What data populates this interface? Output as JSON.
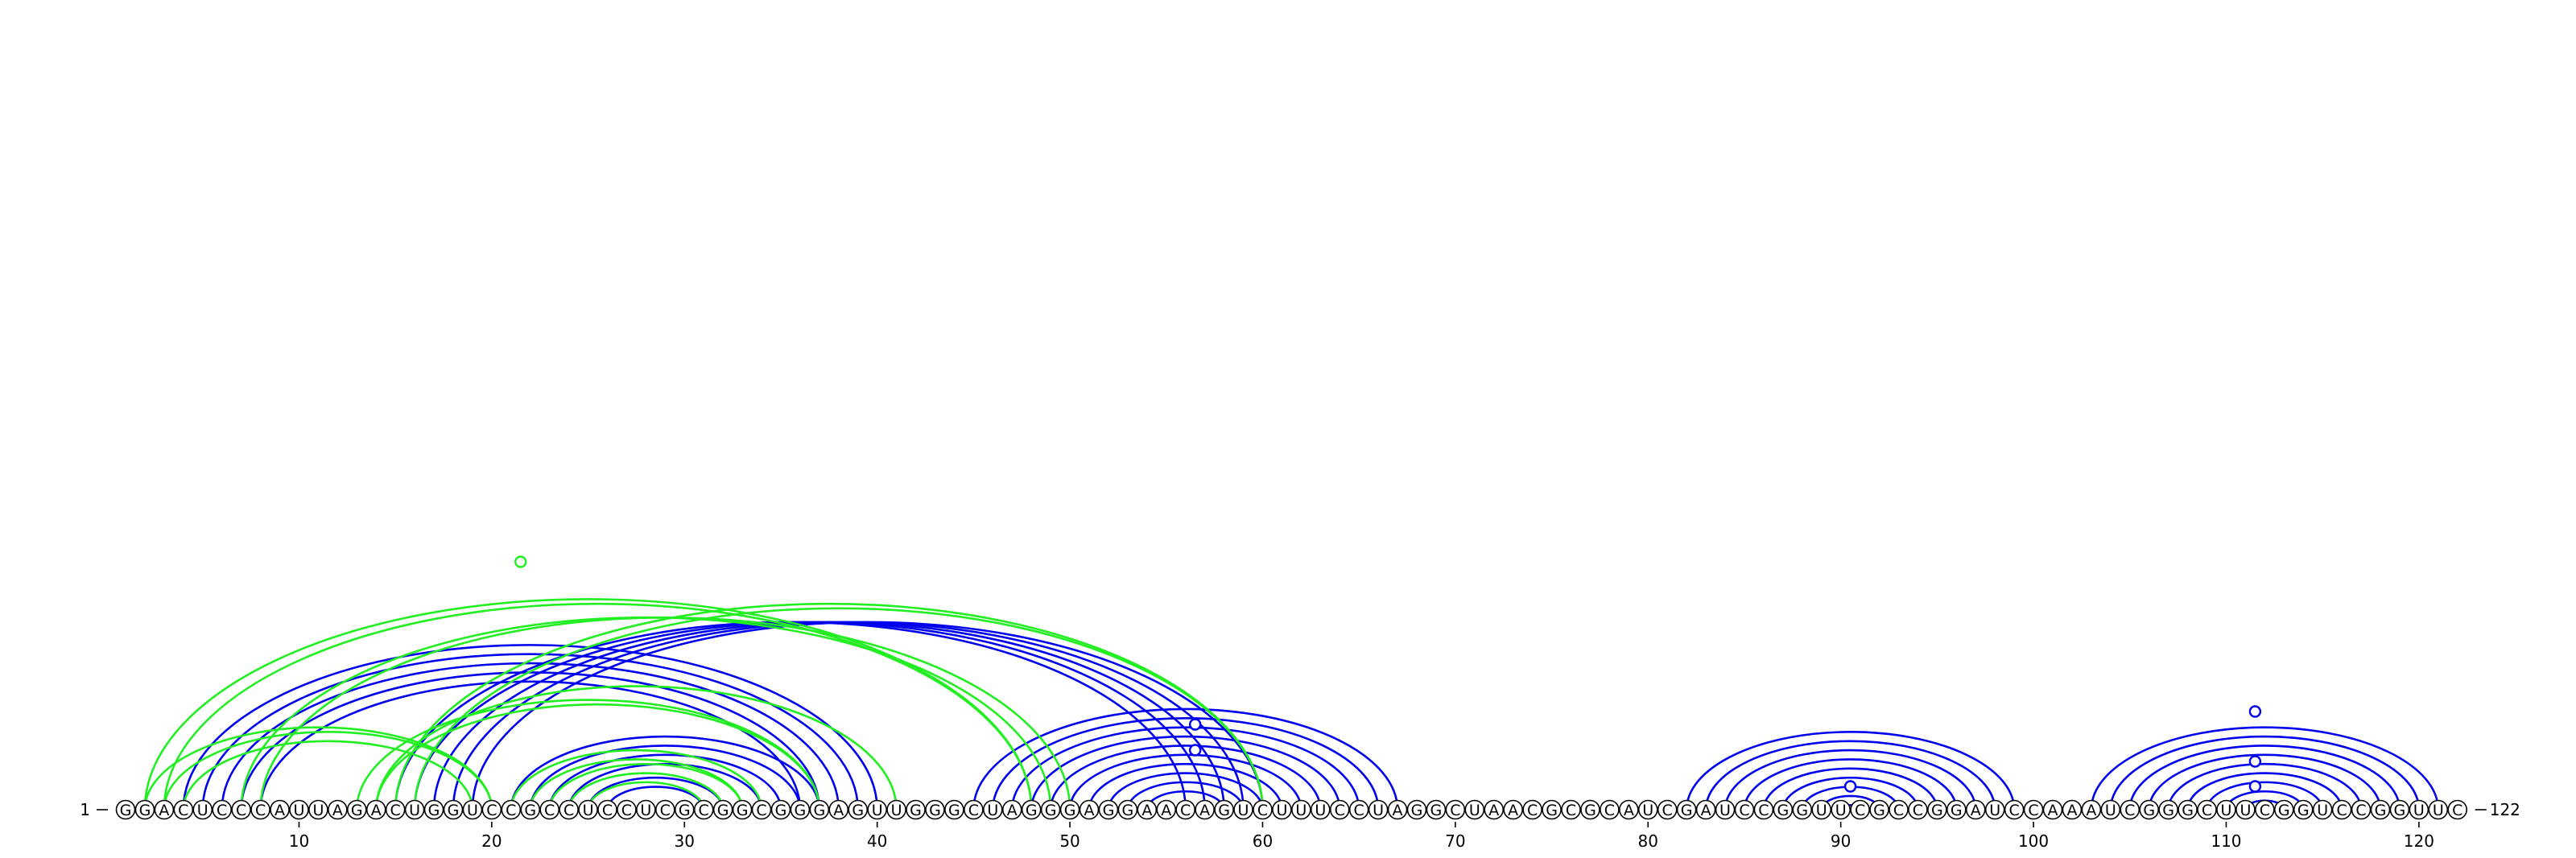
{
  "diagram": {
    "sequence": "GGACUCCCAUUAGACUGGUCCGCCUCCUCGCGGCGGGAGUUGGGCUAGGGAGGAACAGUCUUUCCUAGGCUAACGCGCAUCGAUCCGGUUCGCCGGAUCCAAAUCGGGCUUCGGUCCGGUUC",
    "start_label": "1",
    "end_label": "122",
    "tick_labels": [
      "10",
      "20",
      "30",
      "40",
      "50",
      "60",
      "70",
      "80",
      "90",
      "100",
      "110",
      "120"
    ],
    "colors": {
      "blue": "#0000ee",
      "green": "#22ee22"
    },
    "arc_sets": [
      {
        "color": "blue",
        "pairs": [
          [
            4,
            40
          ],
          [
            5,
            39
          ],
          [
            6,
            38
          ],
          [
            7,
            37
          ],
          [
            8,
            36
          ],
          [
            15,
            56
          ],
          [
            16,
            57
          ],
          [
            17,
            58
          ],
          [
            18,
            59
          ],
          [
            19,
            60
          ],
          [
            21,
            37
          ],
          [
            22,
            36
          ],
          [
            23,
            35
          ],
          [
            24,
            34
          ],
          [
            25,
            32
          ],
          [
            26,
            31
          ],
          [
            45,
            67
          ],
          [
            46,
            66
          ],
          [
            47,
            65
          ],
          [
            48,
            64
          ],
          [
            49,
            63
          ],
          [
            50,
            62
          ],
          [
            51,
            61
          ],
          [
            52,
            60
          ],
          [
            53,
            59
          ],
          [
            54,
            58
          ],
          [
            82,
            99
          ],
          [
            83,
            98
          ],
          [
            84,
            97
          ],
          [
            85,
            96
          ],
          [
            86,
            95
          ],
          [
            87,
            94
          ],
          [
            88,
            93
          ],
          [
            89,
            92
          ],
          [
            90,
            91
          ],
          [
            103,
            121
          ],
          [
            104,
            120
          ],
          [
            105,
            119
          ],
          [
            106,
            118
          ],
          [
            107,
            117
          ],
          [
            108,
            116
          ],
          [
            109,
            115
          ],
          [
            110,
            114
          ],
          [
            111,
            113
          ]
        ]
      },
      {
        "color": "green",
        "pairs": [
          [
            2,
            48
          ],
          [
            3,
            48
          ],
          [
            7,
            49
          ],
          [
            8,
            50
          ],
          [
            14,
            41
          ],
          [
            2,
            20
          ],
          [
            3,
            20
          ],
          [
            4,
            19
          ],
          [
            13,
            37
          ],
          [
            14,
            37
          ],
          [
            15,
            60
          ],
          [
            16,
            60
          ],
          [
            21,
            34
          ],
          [
            22,
            33
          ],
          [
            23,
            33
          ],
          [
            24,
            32
          ],
          [
            25,
            31
          ]
        ]
      }
    ],
    "markers": [
      {
        "color": "green",
        "position": 21.5
      },
      {
        "color": "blue",
        "position": 56.5
      },
      {
        "color": "blue",
        "position": 56.5
      },
      {
        "color": "blue",
        "position": 90.5
      },
      {
        "color": "blue",
        "position": 111.5
      },
      {
        "color": "blue",
        "position": 111.5
      },
      {
        "color": "blue",
        "position": 111.5
      }
    ]
  }
}
